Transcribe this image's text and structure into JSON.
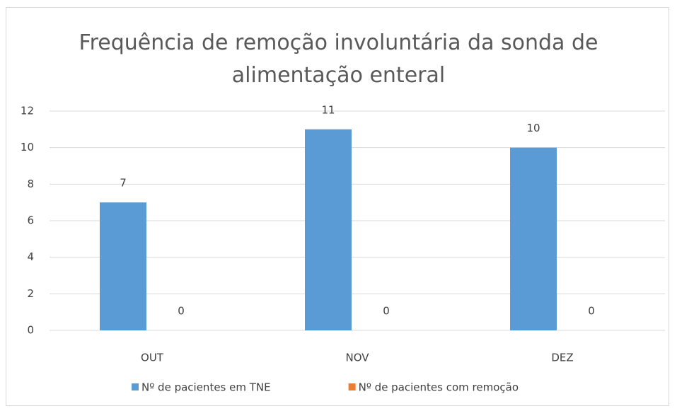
{
  "chart_data": {
    "type": "bar",
    "title": "Frequência de remoção involuntária da sonda de alimentação enteral",
    "categories": [
      "OUT",
      "NOV",
      "DEZ"
    ],
    "series": [
      {
        "name": "Nº de pacientes em TNE",
        "color": "#5b9bd5",
        "values": [
          7,
          11,
          10
        ]
      },
      {
        "name": "Nº de pacientes com remoção",
        "color": "#ed7d31",
        "values": [
          0,
          0,
          0
        ]
      }
    ],
    "ylim": [
      0,
      12
    ],
    "yticks": [
      0,
      2,
      4,
      6,
      8,
      10,
      12
    ],
    "grid": true,
    "legend": "bottom"
  }
}
